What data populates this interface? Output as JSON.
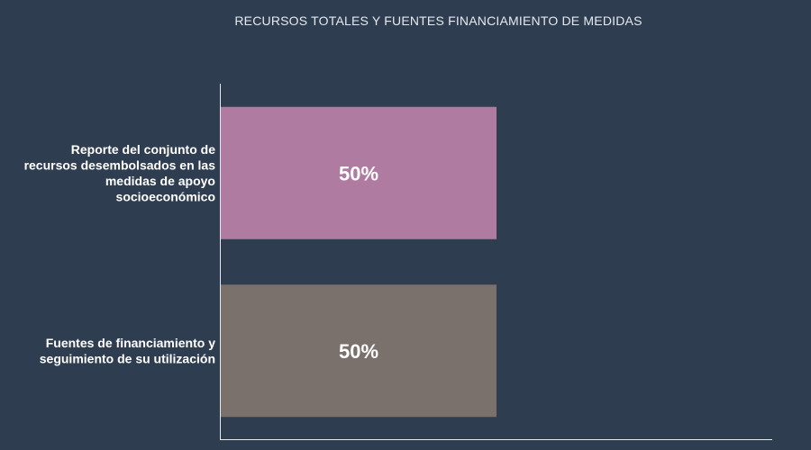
{
  "chart_data": {
    "type": "bar",
    "orientation": "horizontal",
    "title": "RECURSOS TOTALES Y FUENTES FINANCIAMIENTO DE MEDIDAS",
    "categories": [
      [
        "Reporte del conjunto de",
        "recursos desembolsados en las",
        "medidas de apoyo",
        "socioeconómico"
      ],
      [
        "Fuentes de financiamiento y",
        "seguimiento de su utilización"
      ]
    ],
    "values": [
      50,
      50
    ],
    "value_labels": [
      "50%",
      "50%"
    ],
    "colors": [
      "#b07ba1",
      "#7a706c"
    ],
    "xlim": [
      0,
      100
    ],
    "grid": false,
    "legend": "none"
  }
}
